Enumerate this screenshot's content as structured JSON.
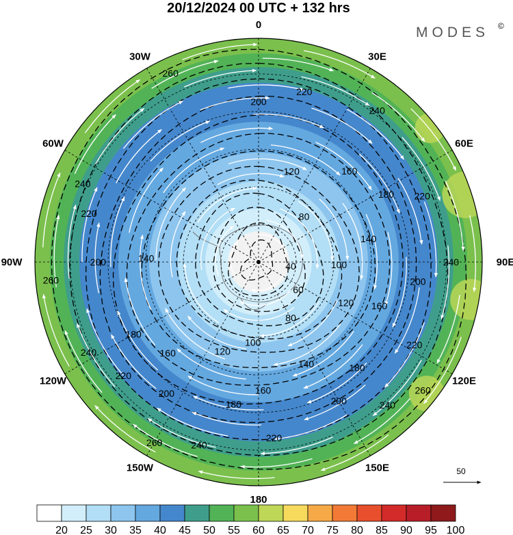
{
  "title": "20/12/2024  00 UTC  + 132 hrs",
  "brand": "MODES",
  "brand_mark": "©",
  "longitude_labels": [
    {
      "label": "0",
      "lon": 0
    },
    {
      "label": "30E",
      "lon": 30
    },
    {
      "label": "60E",
      "lon": 60
    },
    {
      "label": "90E",
      "lon": 90
    },
    {
      "label": "120E",
      "lon": 120
    },
    {
      "label": "150E",
      "lon": 150
    },
    {
      "label": "180",
      "lon": 180
    },
    {
      "label": "150W",
      "lon": -150
    },
    {
      "label": "120W",
      "lon": -120
    },
    {
      "label": "90W",
      "lon": -90
    },
    {
      "label": "60W",
      "lon": -60
    },
    {
      "label": "30W",
      "lon": -30
    }
  ],
  "contour_labels": [
    {
      "text": "200",
      "lon": 0,
      "level": 200
    },
    {
      "text": "220",
      "lon": 15,
      "level": 220
    },
    {
      "text": "240",
      "lon": 38,
      "level": 240
    },
    {
      "text": "160",
      "lon": 45,
      "level": 160
    },
    {
      "text": "120",
      "lon": 20,
      "level": 120
    },
    {
      "text": "180",
      "lon": 62,
      "level": 180
    },
    {
      "text": "220",
      "lon": 68,
      "level": 220
    },
    {
      "text": "80",
      "lon": 45,
      "level": 80
    },
    {
      "text": "140",
      "lon": 78,
      "level": 140
    },
    {
      "text": "100",
      "lon": 92,
      "level": 100
    },
    {
      "text": "40",
      "lon": 97,
      "level": 40
    },
    {
      "text": "200",
      "lon": 97,
      "level": 200
    },
    {
      "text": "240",
      "lon": 90,
      "level": 240
    },
    {
      "text": "160",
      "lon": 110,
      "level": 160
    },
    {
      "text": "120",
      "lon": 115,
      "level": 120
    },
    {
      "text": "60",
      "lon": 125,
      "level": 60
    },
    {
      "text": "220",
      "lon": 118,
      "level": 220
    },
    {
      "text": "180",
      "lon": 137,
      "level": 180
    },
    {
      "text": "80",
      "lon": 150,
      "level": 80
    },
    {
      "text": "260",
      "lon": 128,
      "level": 260
    },
    {
      "text": "240",
      "lon": 138,
      "level": 240
    },
    {
      "text": "140",
      "lon": 155,
      "level": 140
    },
    {
      "text": "100",
      "lon": -176,
      "level": 100
    },
    {
      "text": "160",
      "lon": 178,
      "level": 160
    },
    {
      "text": "200",
      "lon": 150,
      "level": 200
    },
    {
      "text": "180",
      "lon": -170,
      "level": 180
    },
    {
      "text": "220",
      "lon": 175,
      "level": 220
    },
    {
      "text": "120",
      "lon": -158,
      "level": 120
    },
    {
      "text": "200",
      "lon": -145,
      "level": 200
    },
    {
      "text": "220",
      "lon": -130,
      "level": 220
    },
    {
      "text": "240",
      "lon": -162,
      "level": 240
    },
    {
      "text": "260",
      "lon": -150,
      "level": 260
    },
    {
      "text": "160",
      "lon": -135,
      "level": 160
    },
    {
      "text": "180",
      "lon": -120,
      "level": 180
    },
    {
      "text": "240",
      "lon": -118,
      "level": 240
    },
    {
      "text": "140",
      "lon": -88,
      "level": 140
    },
    {
      "text": "200",
      "lon": -90,
      "level": 200
    },
    {
      "text": "220",
      "lon": -74,
      "level": 220
    },
    {
      "text": "260",
      "lon": -95,
      "level": 260
    },
    {
      "text": "240",
      "lon": -66,
      "level": 240
    },
    {
      "text": "260",
      "lon": -25,
      "level": 260
    }
  ],
  "contour_levels": [
    20,
    40,
    60,
    80,
    100,
    120,
    140,
    160,
    180,
    200,
    220,
    240,
    260
  ],
  "wind_speed_bands": [
    {
      "level": 20,
      "color": "#f2f2f2"
    },
    {
      "level": 25,
      "color": "#d2eefb"
    },
    {
      "level": 30,
      "color": "#b2def6"
    },
    {
      "level": 35,
      "color": "#8dc5ee"
    },
    {
      "level": 40,
      "color": "#64a8e0"
    },
    {
      "level": 45,
      "color": "#4587cc"
    },
    {
      "level": 50,
      "color": "#3f9e8b"
    },
    {
      "level": 55,
      "color": "#52b356"
    },
    {
      "level": 60,
      "color": "#7bc04d"
    },
    {
      "level": 65,
      "color": "#bfd757"
    },
    {
      "level": 70,
      "color": "#f7da5c"
    },
    {
      "level": 75,
      "color": "#f6aa47"
    },
    {
      "level": 80,
      "color": "#f27a36"
    },
    {
      "level": 85,
      "color": "#e84f2d"
    },
    {
      "level": 90,
      "color": "#d32a2a"
    },
    {
      "level": 95,
      "color": "#b71e27"
    },
    {
      "level": 100,
      "color": "#8e1a1c"
    }
  ],
  "colorbar": {
    "first_box_color": "#ffffff",
    "labels": [
      "20",
      "25",
      "30",
      "35",
      "40",
      "45",
      "50",
      "55",
      "60",
      "65",
      "70",
      "75",
      "80",
      "85",
      "90",
      "95",
      "100"
    ]
  },
  "vector_reference": {
    "label": "50"
  }
}
